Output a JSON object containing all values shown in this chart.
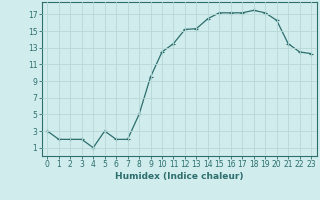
{
  "x": [
    0,
    1,
    2,
    3,
    4,
    5,
    6,
    7,
    8,
    9,
    10,
    11,
    12,
    13,
    14,
    15,
    16,
    17,
    18,
    19,
    20,
    21,
    22,
    23
  ],
  "y": [
    3,
    2,
    2,
    2,
    1,
    3,
    2,
    2,
    5,
    9.5,
    12.5,
    13.5,
    15.2,
    15.3,
    16.5,
    17.2,
    17.2,
    17.2,
    17.5,
    17.2,
    16.3,
    13.5,
    12.5,
    12.3
  ],
  "line_color": "#2d6e6e",
  "marker": "+",
  "bg_color": "#d0ecec",
  "grid_color": "#b8d8d8",
  "xlabel": "Humidex (Indice chaleur)",
  "ylabel_ticks": [
    1,
    3,
    5,
    7,
    9,
    11,
    13,
    15,
    17
  ],
  "xlim": [
    -0.5,
    23.5
  ],
  "ylim": [
    0.0,
    18.5
  ],
  "font_color": "#2d6e6e",
  "fontsize_label": 6.5,
  "fontsize_tick": 5.5,
  "markersize": 3.0,
  "linewidth": 0.9
}
